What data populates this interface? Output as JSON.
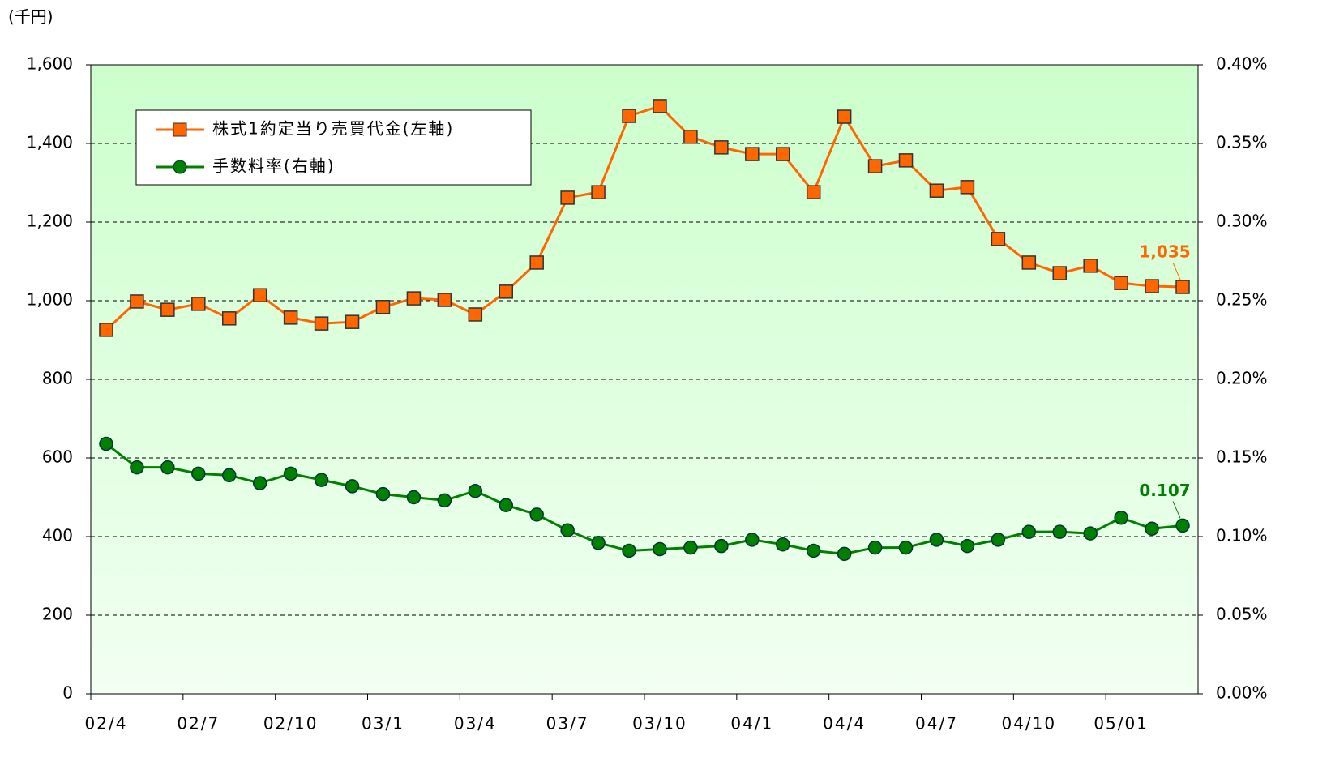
{
  "chart_data": {
    "type": "line",
    "unit_label": "(千円)",
    "categories": [
      "02/4",
      null,
      null,
      "02/7",
      null,
      null,
      "02/10",
      null,
      null,
      "03/1",
      null,
      null,
      "03/4",
      null,
      null,
      "03/7",
      null,
      null,
      "03/10",
      null,
      null,
      "04/1",
      null,
      null,
      "04/4",
      null,
      null,
      "04/7",
      null,
      null,
      "04/10",
      null,
      null,
      "05/01",
      null,
      null
    ],
    "series": [
      {
        "name": "株式1約定当り売買代金(左軸)",
        "color": "#ff6600",
        "axis": "y",
        "values": [
          926,
          998,
          977,
          992,
          955,
          1014,
          957,
          942,
          946,
          984,
          1006,
          1002,
          965,
          1023,
          1097,
          1262,
          1276,
          1470,
          1495,
          1417,
          1390,
          1373,
          1373,
          1276,
          1468,
          1342,
          1357,
          1280,
          1289,
          1157,
          1097,
          1070,
          1089,
          1045,
          1037,
          1035
        ],
        "value_labels": [
          null,
          null,
          null,
          null,
          null,
          null,
          null,
          null,
          null,
          null,
          null,
          null,
          null,
          null,
          null,
          null,
          null,
          null,
          null,
          null,
          null,
          null,
          null,
          null,
          null,
          null,
          null,
          null,
          null,
          null,
          null,
          null,
          null,
          null,
          null,
          "1,035"
        ]
      },
      {
        "name": "手数料率(右軸)",
        "color": "#008000",
        "axis": "y2",
        "values": [
          0.159,
          0.144,
          0.144,
          0.14,
          0.139,
          0.134,
          0.14,
          0.136,
          0.132,
          0.127,
          0.125,
          0.123,
          0.129,
          0.12,
          0.114,
          0.104,
          0.096,
          0.091,
          0.092,
          0.093,
          0.094,
          0.098,
          0.095,
          0.091,
          0.089,
          0.093,
          0.093,
          0.098,
          0.094,
          0.098,
          0.103,
          0.103,
          0.102,
          0.112,
          0.105,
          0.107
        ],
        "value_labels": [
          null,
          null,
          null,
          null,
          null,
          null,
          null,
          null,
          null,
          null,
          null,
          null,
          null,
          null,
          null,
          null,
          null,
          null,
          null,
          null,
          null,
          null,
          null,
          null,
          null,
          null,
          null,
          null,
          null,
          null,
          null,
          null,
          null,
          null,
          null,
          "0.107"
        ]
      }
    ],
    "ylim": [
      0,
      1600
    ],
    "yticks": [
      0,
      200,
      400,
      600,
      800,
      {
        "value": 1000,
        "label": "1,000"
      },
      {
        "value": 1200,
        "label": "1,200"
      },
      {
        "value": 1400,
        "label": "1,400"
      },
      {
        "value": 1600,
        "label": "1,600"
      }
    ],
    "y2lim": [
      0,
      0.4
    ],
    "y2ticks": [
      {
        "value": 0,
        "label": "0.00%"
      },
      {
        "value": 0.05,
        "label": "0.05%"
      },
      {
        "value": 0.1,
        "label": "0.10%"
      },
      {
        "value": 0.15,
        "label": "0.15%"
      },
      {
        "value": 0.2,
        "label": "0.20%"
      },
      {
        "value": 0.25,
        "label": "0.25%"
      },
      {
        "value": 0.3,
        "label": "0.30%"
      },
      {
        "value": 0.35,
        "label": "0.35%"
      },
      {
        "value": 0.4,
        "label": "0.40%"
      }
    ],
    "grid": true,
    "legend": "upper left"
  }
}
